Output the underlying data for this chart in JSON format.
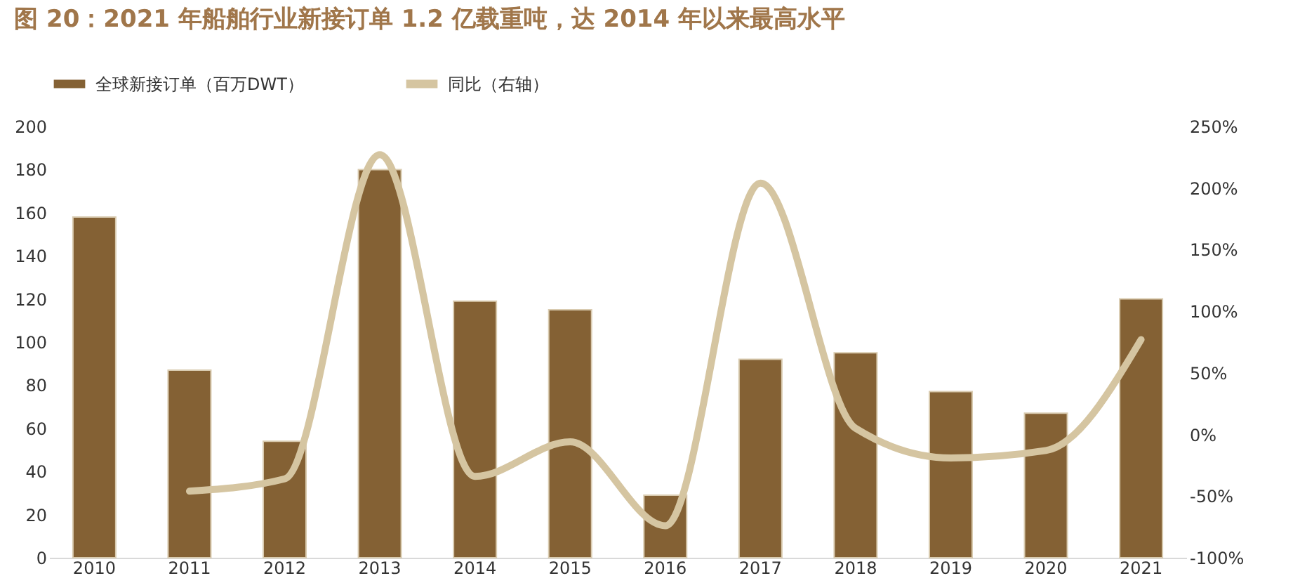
{
  "chart_data": {
    "type": "bar",
    "title": "图 20：2021 年船舶行业新接订单 1.2 亿载重吨，达 2014 年以来最高水平",
    "categories": [
      "2010",
      "2011",
      "2012",
      "2013",
      "2014",
      "2015",
      "2016",
      "2017",
      "2018",
      "2019",
      "2020",
      "2021"
    ],
    "series": [
      {
        "name": "全球新接订单（百万DWT）",
        "color": "#846134",
        "values": [
          158,
          87,
          54,
          180,
          119,
          115,
          29,
          92,
          95,
          77,
          67,
          120
        ]
      },
      {
        "name": "同比（右轴）",
        "type": "line",
        "axis": "y2",
        "color": "#d5c5a1",
        "values": [
          null,
          -46,
          -36,
          227,
          -34,
          -6,
          -74,
          204,
          5,
          -19,
          -13,
          77
        ]
      }
    ],
    "ylim": [
      0,
      200
    ],
    "yticks": [
      0,
      20,
      40,
      60,
      80,
      100,
      120,
      140,
      160,
      180,
      200
    ],
    "y2lim": [
      -100,
      250
    ],
    "y2ticks": [
      {
        "value": -100,
        "label": "-100%"
      },
      {
        "value": -50,
        "label": "-50%"
      },
      {
        "value": 0,
        "label": "0%"
      },
      {
        "value": 50,
        "label": "50%"
      },
      {
        "value": 100,
        "label": "100%"
      },
      {
        "value": 150,
        "label": "150%"
      },
      {
        "value": 200,
        "label": "200%"
      },
      {
        "value": 250,
        "label": "250%"
      }
    ],
    "legend": "top",
    "grid": false
  }
}
